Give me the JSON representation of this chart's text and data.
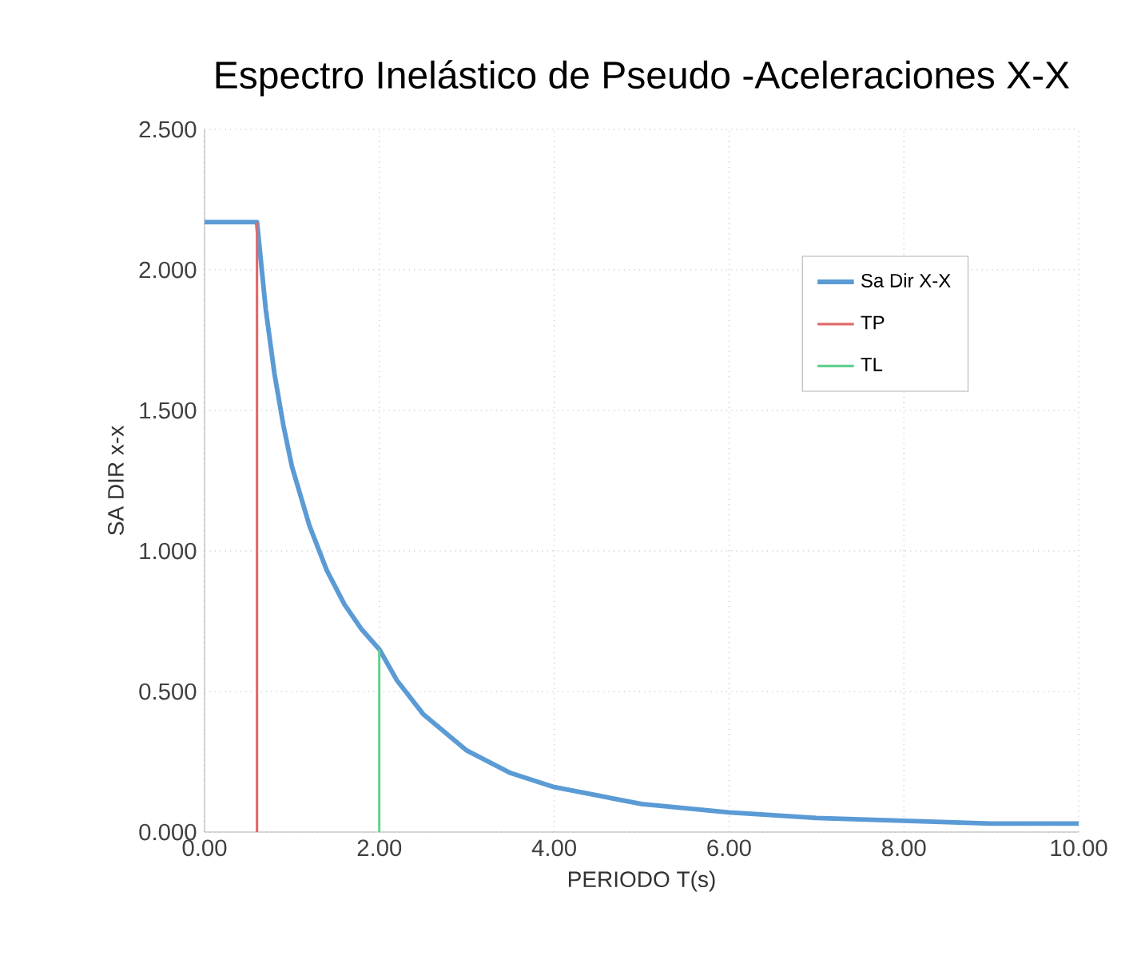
{
  "chart_data": {
    "type": "line",
    "title": "Espectro Inelástico de Pseudo -Aceleraciones X-X",
    "xlabel": "PERIODO T(s)",
    "ylabel": "SA DIR x-x",
    "xlim": [
      0,
      10
    ],
    "xticks": [
      {
        "value": 0,
        "label": "0.00"
      },
      {
        "value": 2,
        "label": "2.00"
      },
      {
        "value": 4,
        "label": "4.00"
      },
      {
        "value": 6,
        "label": "6.00"
      },
      {
        "value": 8,
        "label": "8.00"
      },
      {
        "value": 10,
        "label": "10.00"
      }
    ],
    "ylim": [
      0,
      2.5
    ],
    "yticks": [
      {
        "value": 0,
        "label": "0.000"
      },
      {
        "value": 0.5,
        "label": "0.500"
      },
      {
        "value": 1,
        "label": "1.000"
      },
      {
        "value": 1.5,
        "label": "1.500"
      },
      {
        "value": 2,
        "label": "2.000"
      },
      {
        "value": 2.5,
        "label": "2.500"
      }
    ],
    "grid": true,
    "legend": "top right",
    "marker": "none",
    "line_style": "solid",
    "series": [
      {
        "name": "Sa Dir X-X",
        "color": "#5b9bd5",
        "x": [
          0,
          0.6,
          0.7,
          0.8,
          0.9,
          1.0,
          1.2,
          1.4,
          1.6,
          1.8,
          2.0,
          2.2,
          2.5,
          3.0,
          3.5,
          4.0,
          4.5,
          5,
          6,
          7,
          8,
          9,
          10
        ],
        "values": [
          2.17,
          2.17,
          1.86,
          1.63,
          1.45,
          1.3,
          1.09,
          0.93,
          0.81,
          0.72,
          0.65,
          0.54,
          0.42,
          0.29,
          0.21,
          0.16,
          0.13,
          0.1,
          0.07,
          0.05,
          0.04,
          0.03,
          0.03
        ]
      },
      {
        "name": "TP",
        "color": "#e06c6c",
        "x": [
          0.6,
          0.6
        ],
        "values": [
          0,
          2.17
        ]
      },
      {
        "name": "TL",
        "color": "#5fd08f",
        "x": [
          2,
          2
        ],
        "values": [
          0,
          0.65
        ]
      }
    ]
  }
}
